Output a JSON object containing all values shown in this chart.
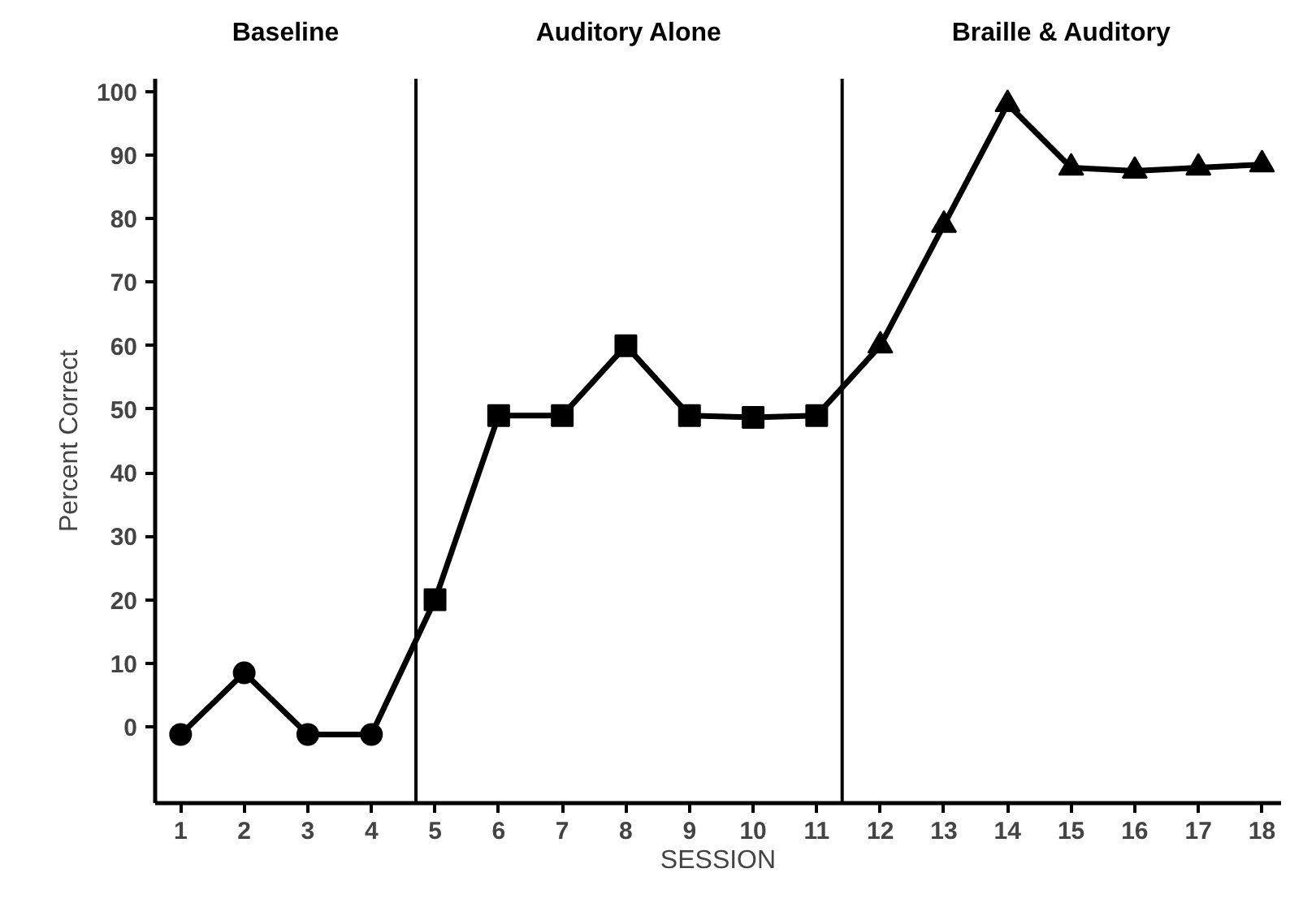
{
  "chart_data": {
    "type": "line",
    "xlabel": "SESSION",
    "ylabel": "Percent Correct",
    "xlim": [
      0.6,
      18.3
    ],
    "ylim": [
      -12,
      102
    ],
    "xticks": [
      1,
      2,
      3,
      4,
      5,
      6,
      7,
      8,
      9,
      10,
      11,
      12,
      13,
      14,
      15,
      16,
      17,
      18
    ],
    "yticks": [
      0,
      10,
      20,
      30,
      40,
      50,
      60,
      70,
      80,
      90,
      100
    ],
    "annotations": [
      "Baseline",
      "Auditory Alone",
      "Braille & Auditory"
    ],
    "ref_lines": [
      {
        "axis": "x",
        "value": 4.7,
        "color": "#000000"
      },
      {
        "axis": "x",
        "value": 11.4,
        "color": "#000000"
      }
    ],
    "series": [
      {
        "marker": "none",
        "color": "#000000",
        "x": [
          1,
          2,
          3,
          4,
          5,
          6,
          7,
          8,
          9,
          10,
          11,
          12,
          13,
          14,
          15,
          16,
          17,
          18
        ],
        "values": [
          -1.2,
          8.5,
          -1.2,
          -1.2,
          20,
          49,
          49,
          60,
          49,
          48.7,
          49,
          60,
          79,
          98,
          88,
          87.5,
          88,
          88.5
        ]
      },
      {
        "type": "scatter",
        "marker": "circle",
        "color": "#000000",
        "x": [
          1,
          2,
          3,
          4
        ],
        "values": [
          -1.2,
          8.5,
          -1.2,
          -1.2
        ]
      },
      {
        "type": "scatter",
        "marker": "square",
        "color": "#000000",
        "x": [
          5,
          6,
          7,
          8,
          9,
          10,
          11
        ],
        "values": [
          20,
          49,
          49,
          60,
          49,
          48.7,
          49
        ]
      },
      {
        "type": "scatter",
        "marker": "triangle",
        "color": "#000000",
        "x": [
          12,
          13,
          14,
          15,
          16,
          17,
          18
        ],
        "values": [
          60,
          79,
          98,
          88,
          87.5,
          88,
          88.5
        ]
      }
    ]
  }
}
